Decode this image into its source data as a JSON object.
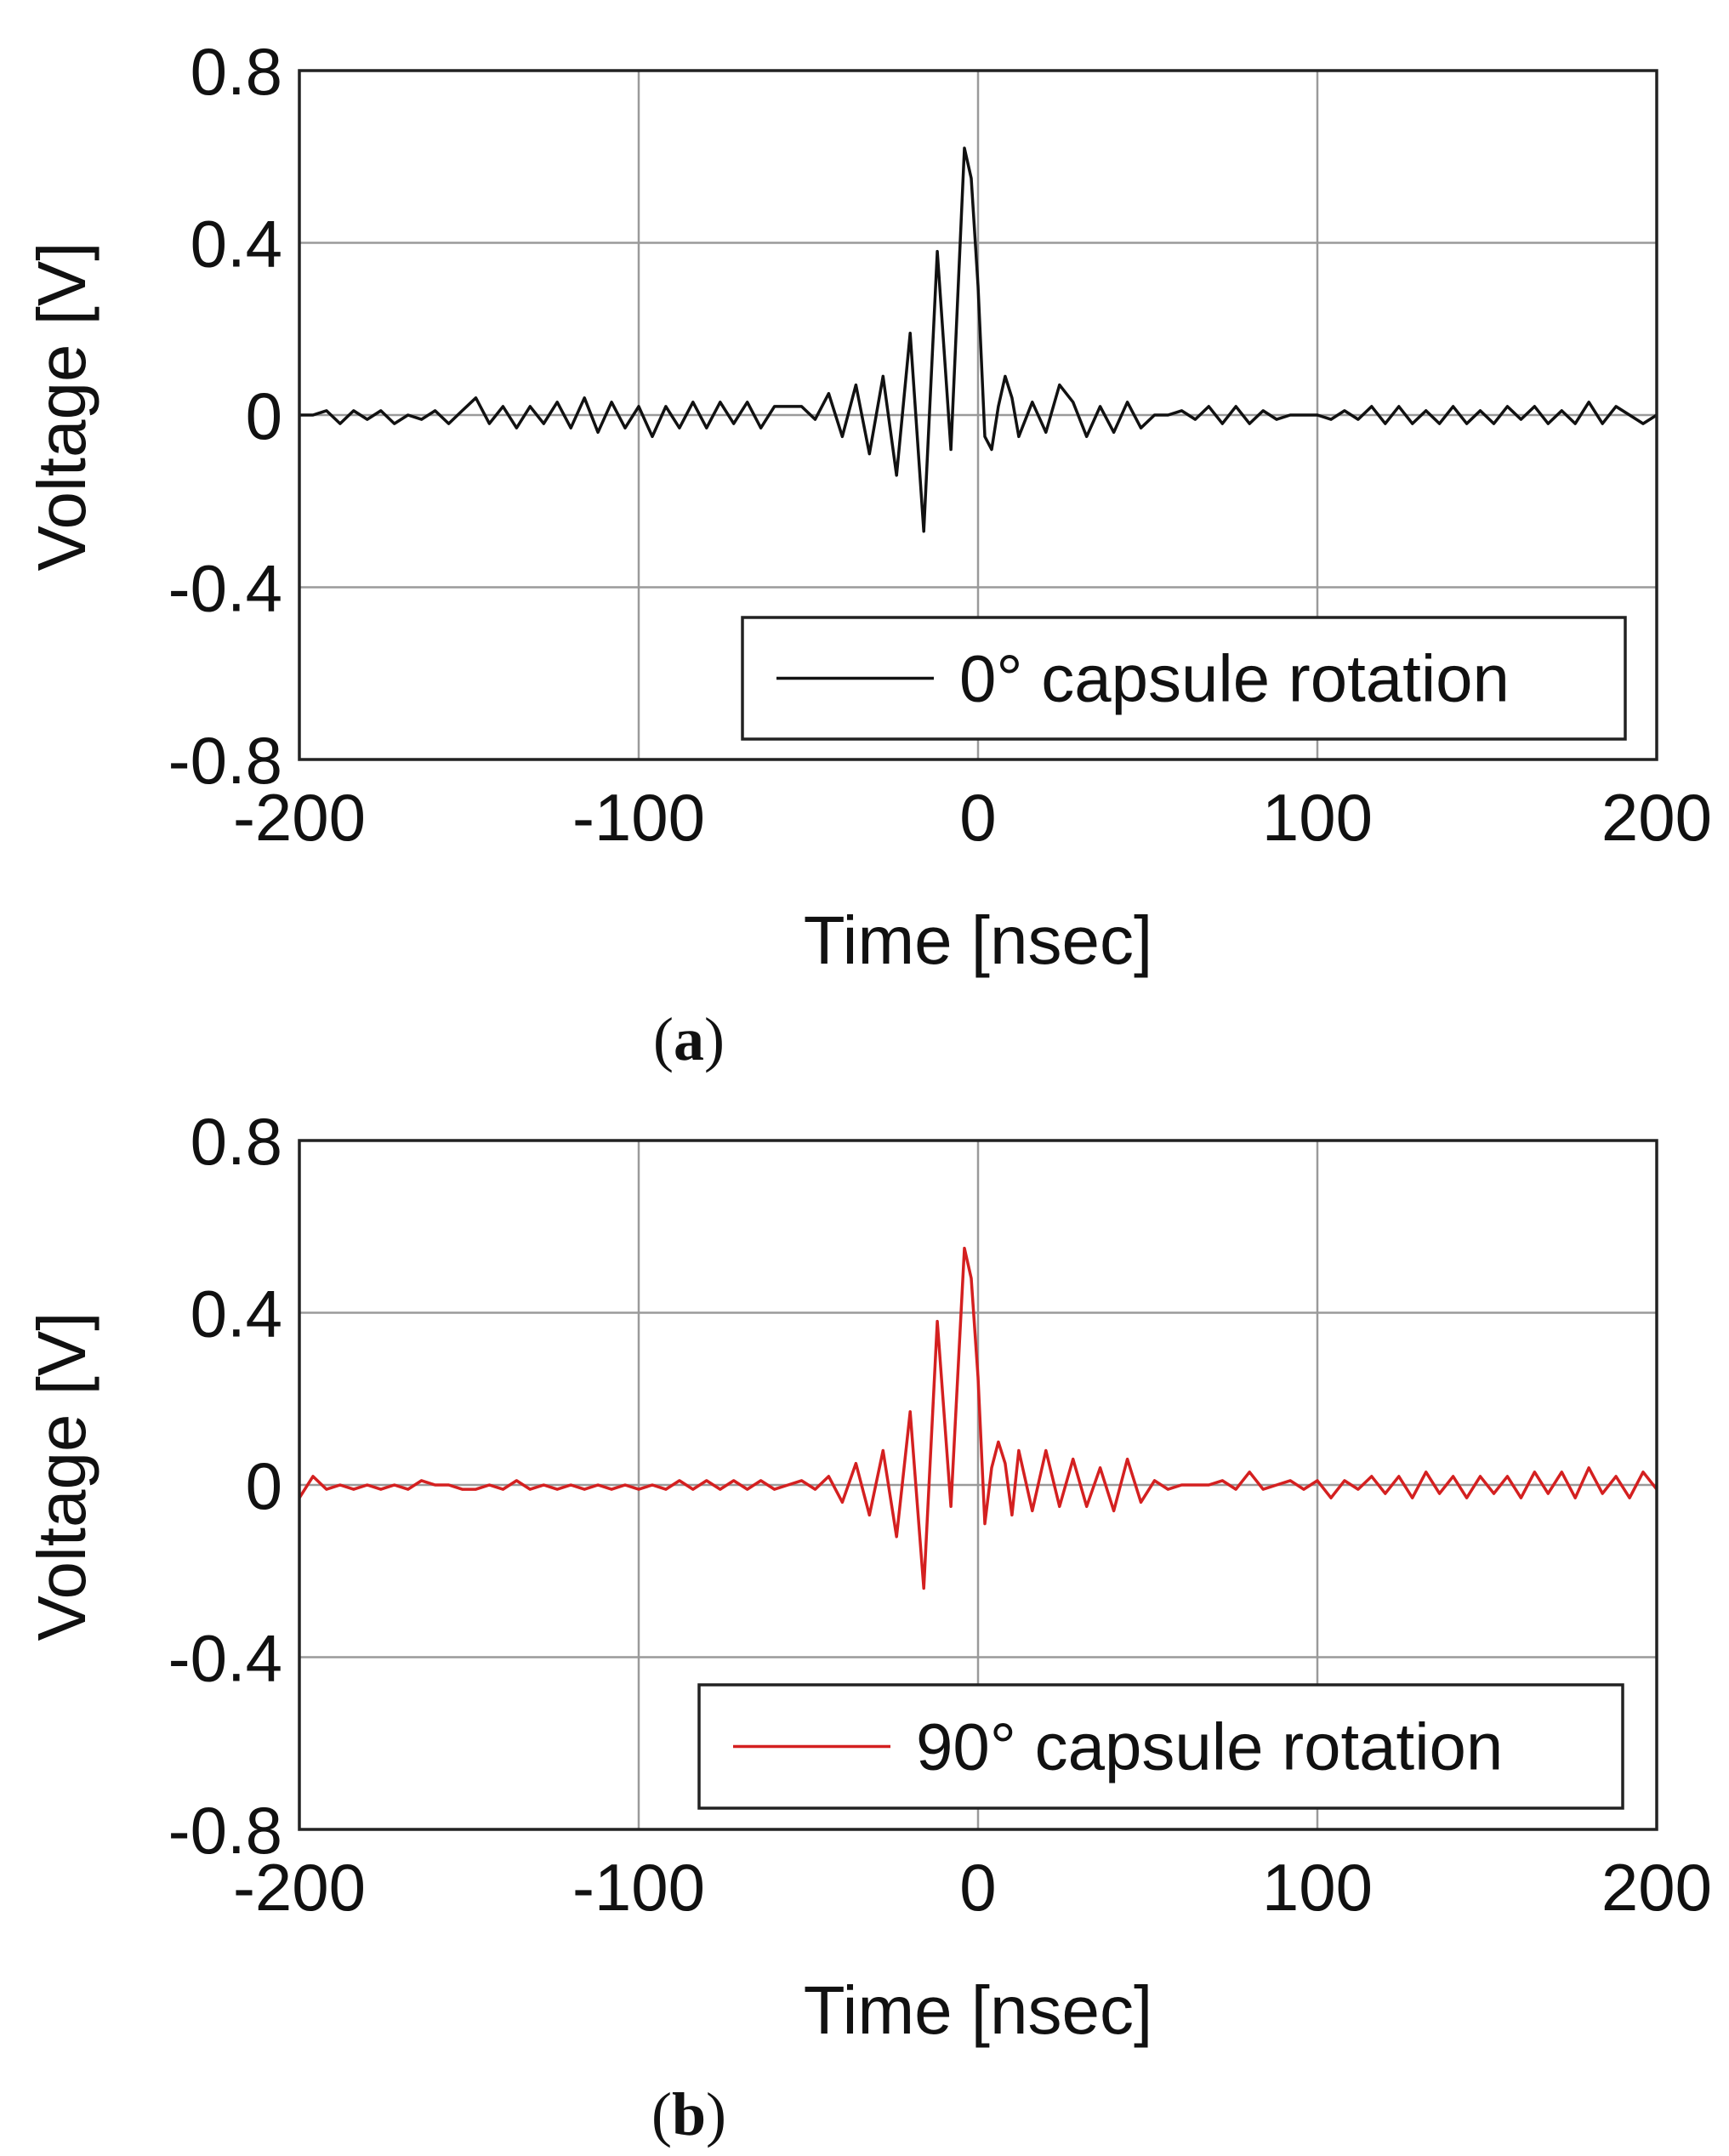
{
  "chart_data": [
    {
      "panel": "a",
      "type": "line",
      "caption": "a",
      "xlabel": "Time [nsec]",
      "ylabel": "Voltage [V]",
      "xlim": [
        -200,
        200
      ],
      "ylim": [
        -0.8,
        0.8
      ],
      "xticks": [
        -200,
        -100,
        0,
        100,
        200
      ],
      "xtick_labels": [
        "-200",
        "-100",
        "0",
        "100",
        "200"
      ],
      "yticks": [
        -0.8,
        -0.4,
        0,
        0.4,
        0.8
      ],
      "ytick_labels": [
        "-0.8",
        "-0.4",
        "0",
        "0.4",
        "0.8"
      ],
      "grid": true,
      "legend_position": "bottom-right",
      "series": [
        {
          "name": "0° capsule rotation",
          "color": "#111111",
          "x": [
            -200,
            -196,
            -192,
            -188,
            -184,
            -180,
            -176,
            -172,
            -168,
            -164,
            -160,
            -156,
            -152,
            -148,
            -144,
            -140,
            -136,
            -132,
            -128,
            -124,
            -120,
            -116,
            -112,
            -108,
            -104,
            -100,
            -96,
            -92,
            -88,
            -84,
            -80,
            -76,
            -72,
            -68,
            -64,
            -60,
            -56,
            -52,
            -48,
            -44,
            -40,
            -36,
            -32,
            -28,
            -24,
            -20,
            -16,
            -12,
            -8,
            -4,
            -2,
            0,
            2,
            4,
            6,
            8,
            10,
            12,
            16,
            20,
            24,
            28,
            32,
            36,
            40,
            44,
            48,
            52,
            56,
            60,
            64,
            68,
            72,
            76,
            80,
            84,
            88,
            92,
            96,
            100,
            104,
            108,
            112,
            116,
            120,
            124,
            128,
            132,
            136,
            140,
            144,
            148,
            152,
            156,
            160,
            164,
            168,
            172,
            176,
            180,
            184,
            188,
            192,
            196,
            200
          ],
          "values": [
            0.0,
            0.0,
            0.01,
            -0.02,
            0.01,
            -0.01,
            0.01,
            -0.02,
            0.0,
            -0.01,
            0.01,
            -0.02,
            0.01,
            0.04,
            -0.02,
            0.02,
            -0.03,
            0.02,
            -0.02,
            0.03,
            -0.03,
            0.04,
            -0.04,
            0.03,
            -0.03,
            0.02,
            -0.05,
            0.02,
            -0.03,
            0.03,
            -0.03,
            0.03,
            -0.02,
            0.03,
            -0.03,
            0.02,
            0.02,
            0.02,
            -0.01,
            0.05,
            -0.05,
            0.07,
            -0.09,
            0.09,
            -0.14,
            0.19,
            -0.27,
            0.38,
            -0.08,
            0.62,
            0.55,
            0.3,
            -0.05,
            -0.08,
            0.02,
            0.09,
            0.04,
            -0.05,
            0.03,
            -0.04,
            0.07,
            0.03,
            -0.05,
            0.02,
            -0.04,
            0.03,
            -0.03,
            0.0,
            0.0,
            0.01,
            -0.01,
            0.02,
            -0.02,
            0.02,
            -0.02,
            0.01,
            -0.01,
            0.0,
            0.0,
            0.0,
            -0.01,
            0.01,
            -0.01,
            0.02,
            -0.02,
            0.02,
            -0.02,
            0.01,
            -0.02,
            0.02,
            -0.02,
            0.01,
            -0.02,
            0.02,
            -0.01,
            0.02,
            -0.02,
            0.01,
            -0.02,
            0.03,
            -0.02,
            0.02,
            0.0,
            -0.02,
            0.0
          ]
        }
      ]
    },
    {
      "panel": "b",
      "type": "line",
      "caption": "b",
      "xlabel": "Time [nsec]",
      "ylabel": "Voltage [V]",
      "xlim": [
        -200,
        200
      ],
      "ylim": [
        -0.8,
        0.8
      ],
      "xticks": [
        -200,
        -100,
        0,
        100,
        200
      ],
      "xtick_labels": [
        "-200",
        "-100",
        "0",
        "100",
        "200"
      ],
      "yticks": [
        -0.8,
        -0.4,
        0,
        0.4,
        0.8
      ],
      "ytick_labels": [
        "-0.8",
        "-0.4",
        "0",
        "0.4",
        "0.8"
      ],
      "grid": true,
      "legend_position": "bottom-right",
      "series": [
        {
          "name": "90° capsule rotation",
          "color": "#d42020",
          "x": [
            -200,
            -196,
            -192,
            -188,
            -184,
            -180,
            -176,
            -172,
            -168,
            -164,
            -160,
            -156,
            -152,
            -148,
            -144,
            -140,
            -136,
            -132,
            -128,
            -124,
            -120,
            -116,
            -112,
            -108,
            -104,
            -100,
            -96,
            -92,
            -88,
            -84,
            -80,
            -76,
            -72,
            -68,
            -64,
            -60,
            -56,
            -52,
            -48,
            -44,
            -40,
            -36,
            -32,
            -28,
            -24,
            -20,
            -16,
            -12,
            -8,
            -4,
            -2,
            0,
            2,
            4,
            6,
            8,
            10,
            12,
            16,
            20,
            24,
            28,
            32,
            36,
            40,
            44,
            48,
            52,
            56,
            60,
            64,
            68,
            72,
            76,
            80,
            84,
            88,
            92,
            96,
            100,
            104,
            108,
            112,
            116,
            120,
            124,
            128,
            132,
            136,
            140,
            144,
            148,
            152,
            156,
            160,
            164,
            168,
            172,
            176,
            180,
            184,
            188,
            192,
            196,
            200
          ],
          "values": [
            -0.03,
            0.02,
            -0.01,
            0.0,
            -0.01,
            0.0,
            -0.01,
            0.0,
            -0.01,
            0.01,
            0.0,
            0.0,
            -0.01,
            -0.01,
            0.0,
            -0.01,
            0.01,
            -0.01,
            0.0,
            -0.01,
            0.0,
            -0.01,
            0.0,
            -0.01,
            0.0,
            -0.01,
            0.0,
            -0.01,
            0.01,
            -0.01,
            0.01,
            -0.01,
            0.01,
            -0.01,
            0.01,
            -0.01,
            0.0,
            0.01,
            -0.01,
            0.02,
            -0.04,
            0.05,
            -0.07,
            0.08,
            -0.12,
            0.17,
            -0.24,
            0.38,
            -0.05,
            0.55,
            0.48,
            0.25,
            -0.09,
            0.04,
            0.1,
            0.05,
            -0.07,
            0.08,
            -0.06,
            0.08,
            -0.05,
            0.06,
            -0.05,
            0.04,
            -0.06,
            0.06,
            -0.04,
            0.01,
            -0.01,
            0.0,
            0.0,
            0.0,
            0.01,
            -0.01,
            0.03,
            -0.01,
            0.0,
            0.01,
            -0.01,
            0.01,
            -0.03,
            0.01,
            -0.01,
            0.02,
            -0.02,
            0.02,
            -0.03,
            0.03,
            -0.02,
            0.02,
            -0.03,
            0.02,
            -0.02,
            0.02,
            -0.03,
            0.03,
            -0.02,
            0.03,
            -0.03,
            0.04,
            -0.02,
            0.02,
            -0.03,
            0.03,
            -0.01
          ]
        }
      ]
    }
  ]
}
